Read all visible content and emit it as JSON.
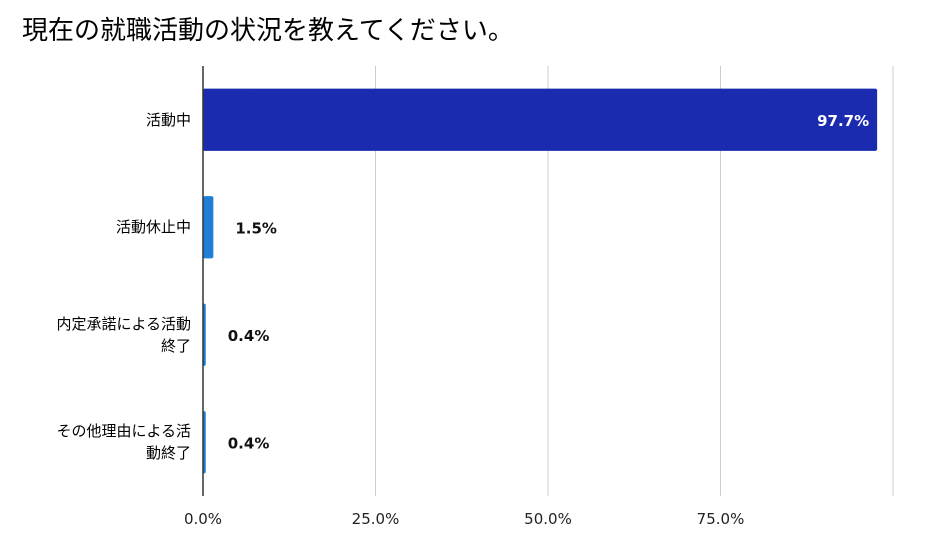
{
  "chart_data": {
    "type": "bar",
    "orientation": "horizontal",
    "title": "現在の就職活動の状況を教えてください。",
    "categories": [
      [
        "活動中"
      ],
      [
        "活動休止中"
      ],
      [
        "内定承諾による活動",
        "終了"
      ],
      [
        "その他理由による活",
        "動終了"
      ]
    ],
    "values": [
      97.7,
      1.5,
      0.4,
      0.4
    ],
    "value_labels": [
      "97.7%",
      "1.5%",
      "0.4%",
      "0.4%"
    ],
    "xlim": [
      0,
      100
    ],
    "x_ticks": [
      0,
      25,
      50,
      75
    ],
    "x_tick_labels": [
      "0.0%",
      "25.0%",
      "50.0%",
      "75.0%"
    ],
    "grid": true,
    "colors": {
      "primary": "#1a2bb0",
      "secondary": "#1f7fd6"
    }
  }
}
